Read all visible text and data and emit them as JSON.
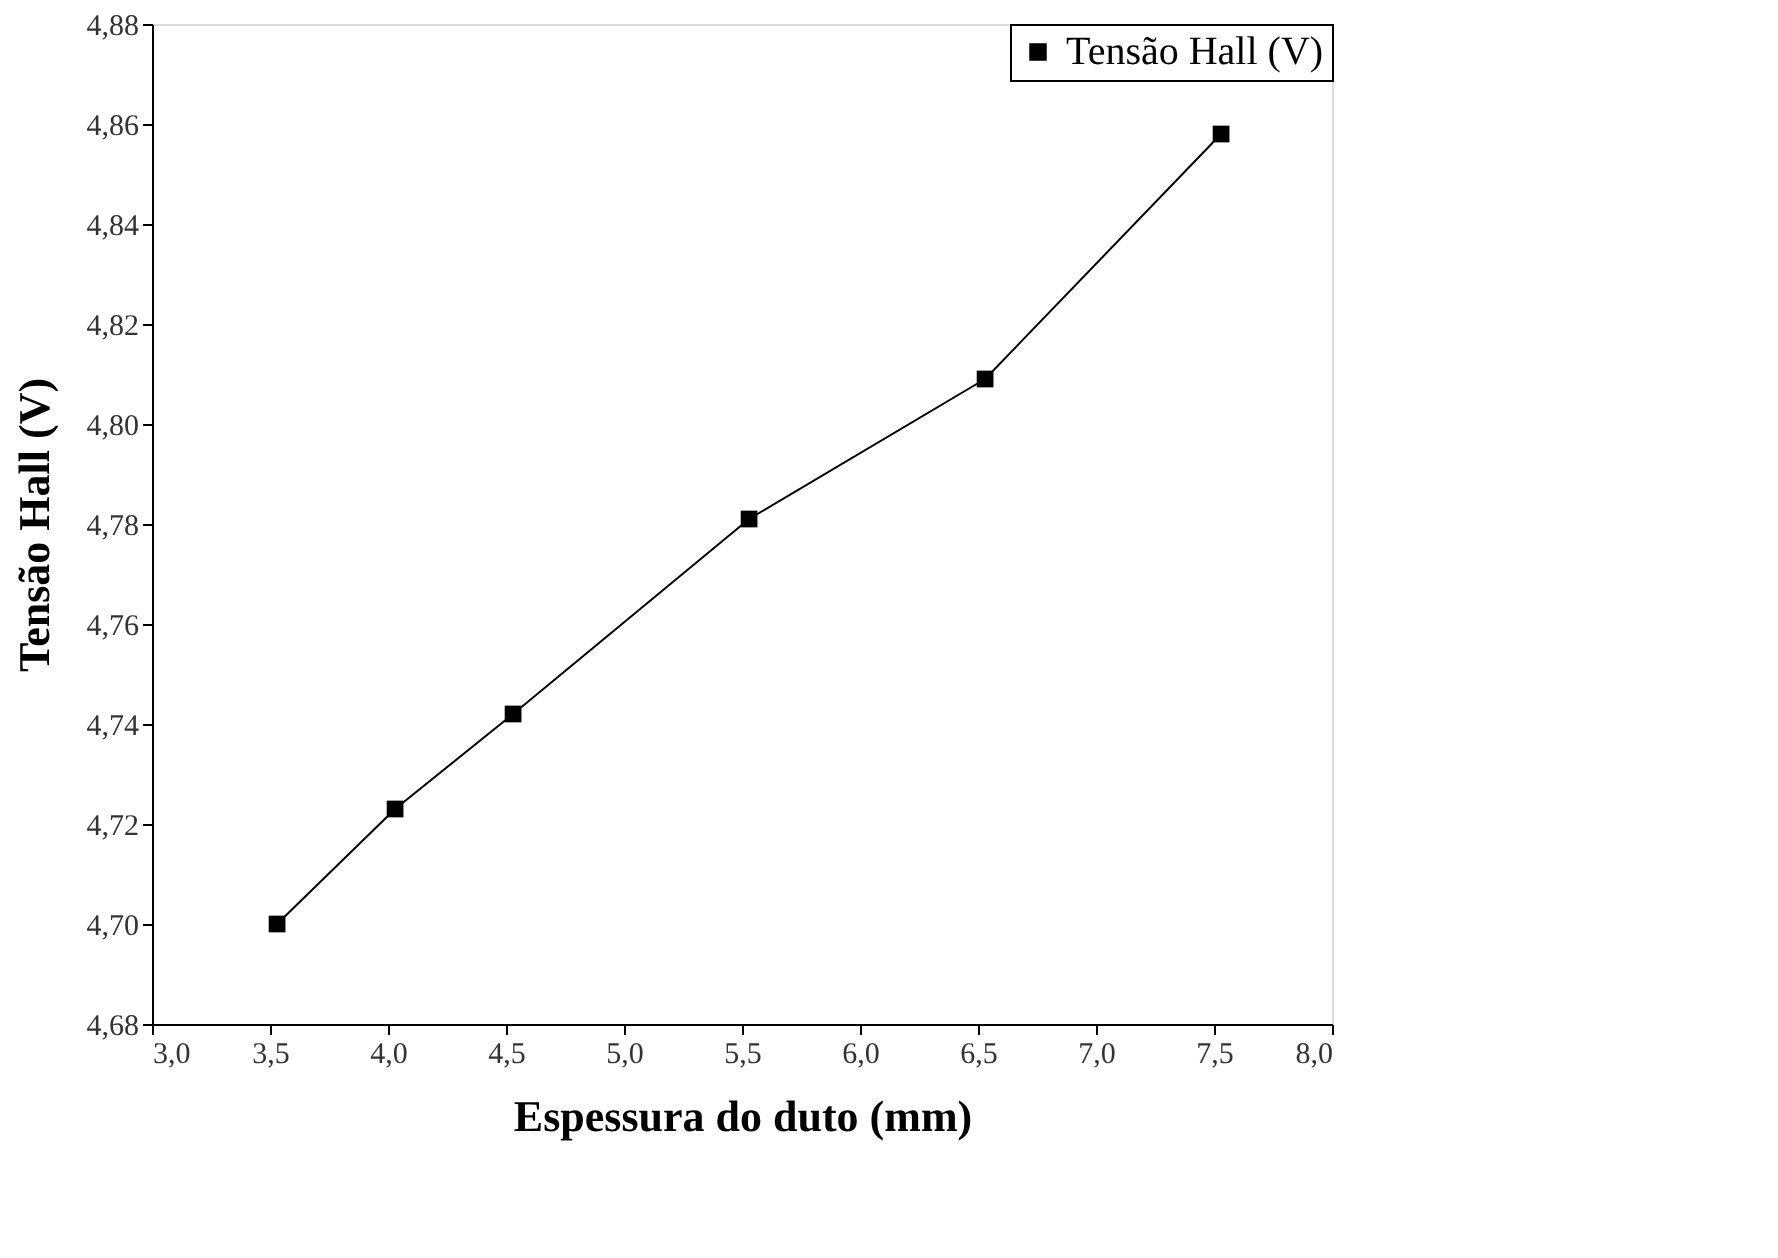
{
  "chart_data": {
    "type": "line",
    "xlabel": "Espessura do duto (mm)",
    "ylabel": "Tensão Hall (V)",
    "x": [
      3.53,
      4.03,
      4.53,
      5.53,
      6.53,
      7.53
    ],
    "series": [
      {
        "name": "Tensão Hall (V)",
        "color": "#000000",
        "values": [
          4.7,
          4.723,
          4.742,
          4.781,
          4.809,
          4.858
        ]
      }
    ],
    "xlim": [
      3.0,
      8.0
    ],
    "ylim": [
      4.68,
      4.88
    ],
    "xticks": [
      {
        "value": 3.0,
        "label": "3,0"
      },
      {
        "value": 3.5,
        "label": "3,5"
      },
      {
        "value": 4.0,
        "label": "4,0"
      },
      {
        "value": 4.5,
        "label": "4,5"
      },
      {
        "value": 5.0,
        "label": "5,0"
      },
      {
        "value": 5.5,
        "label": "5,5"
      },
      {
        "value": 6.0,
        "label": "6,0"
      },
      {
        "value": 6.5,
        "label": "6,5"
      },
      {
        "value": 7.0,
        "label": "7,0"
      },
      {
        "value": 7.5,
        "label": "7,5"
      },
      {
        "value": 8.0,
        "label": "8,0"
      }
    ],
    "yticks": [
      {
        "value": 4.68,
        "label": "4,68"
      },
      {
        "value": 4.7,
        "label": "4,70"
      },
      {
        "value": 4.72,
        "label": "4,72"
      },
      {
        "value": 4.74,
        "label": "4,74"
      },
      {
        "value": 4.76,
        "label": "4,76"
      },
      {
        "value": 4.78,
        "label": "4,78"
      },
      {
        "value": 4.8,
        "label": "4,80"
      },
      {
        "value": 4.82,
        "label": "4,82"
      },
      {
        "value": 4.84,
        "label": "4,84"
      },
      {
        "value": 4.86,
        "label": "4,86"
      },
      {
        "value": 4.88,
        "label": "4,88"
      }
    ],
    "marker": "square",
    "line_style": "solid",
    "legend": "top right",
    "grid": false
  }
}
